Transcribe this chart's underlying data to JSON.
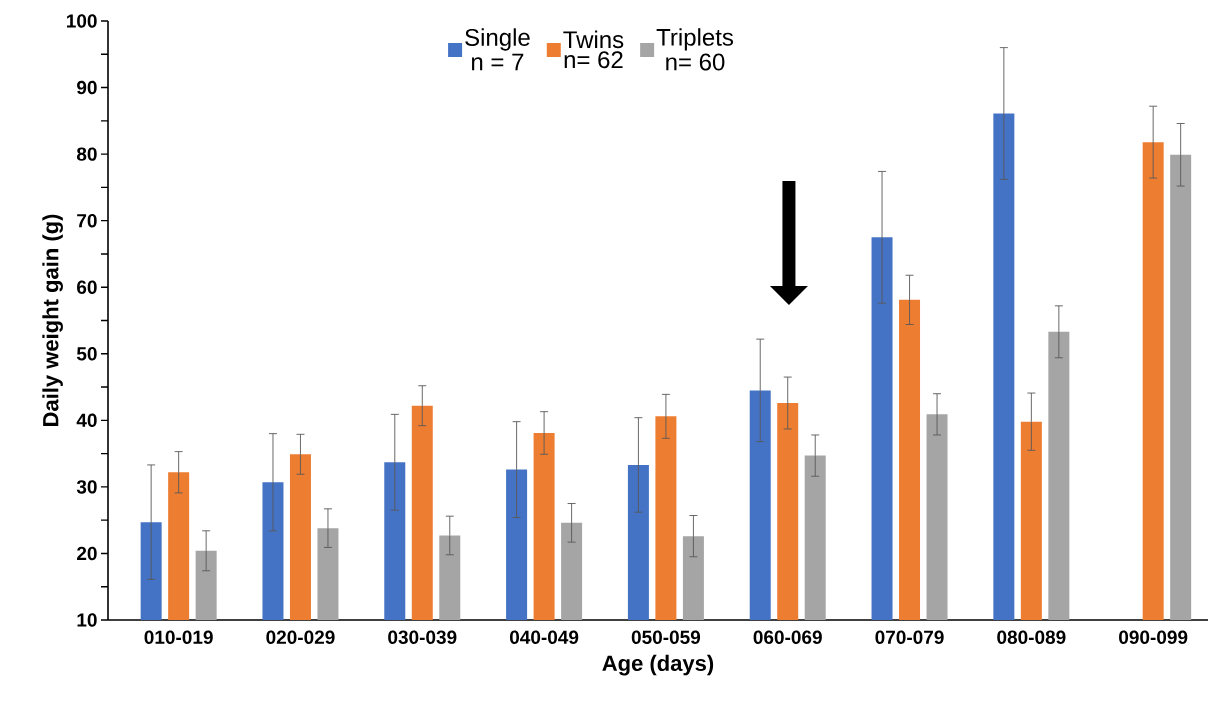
{
  "chart_data": {
    "type": "bar",
    "xlabel": "Age (days)",
    "ylabel": "Daily weight gain (g)",
    "categories": [
      "010-019",
      "020-029",
      "030-039",
      "040-049",
      "050-059",
      "060-069",
      "070-079",
      "080-089",
      "090-099"
    ],
    "series": [
      {
        "name": "Single",
        "color": "#4472c4",
        "values": [
          24.7,
          30.7,
          33.7,
          32.6,
          33.3,
          44.5,
          67.5,
          86.1,
          null
        ],
        "errors": [
          8.6,
          7.3,
          7.2,
          7.2,
          7.1,
          7.7,
          9.9,
          9.9,
          null
        ]
      },
      {
        "name": "Twins",
        "color": "#ed7d31",
        "values": [
          32.2,
          34.9,
          42.2,
          38.1,
          40.6,
          42.6,
          58.1,
          39.8,
          81.8
        ],
        "errors": [
          3.1,
          3.0,
          3.0,
          3.2,
          3.3,
          3.9,
          3.7,
          4.3,
          5.4
        ]
      },
      {
        "name": "Triplets",
        "color": "#a5a5a5",
        "values": [
          20.4,
          23.8,
          22.7,
          24.6,
          22.6,
          34.7,
          40.9,
          53.3,
          79.9
        ],
        "errors": [
          3.0,
          2.9,
          2.9,
          2.9,
          3.1,
          3.1,
          3.1,
          3.9,
          4.7
        ]
      }
    ],
    "annotations": [
      "n = 7",
      "n= 62",
      "n= 60"
    ],
    "ylim": [
      10,
      100
    ],
    "yticks": [
      10,
      {
        "value": 15,
        "label": null
      },
      20,
      {
        "value": 25,
        "label": null
      },
      30,
      {
        "value": 35,
        "label": null
      },
      40,
      {
        "value": 45,
        "label": null
      },
      50,
      {
        "value": 55,
        "label": null
      },
      60,
      {
        "value": 65,
        "label": null
      },
      70,
      {
        "value": 75,
        "label": null
      },
      80,
      {
        "value": 85,
        "label": null
      },
      90,
      {
        "value": 95,
        "label": null
      },
      100
    ],
    "grid": false,
    "legend": "top"
  }
}
